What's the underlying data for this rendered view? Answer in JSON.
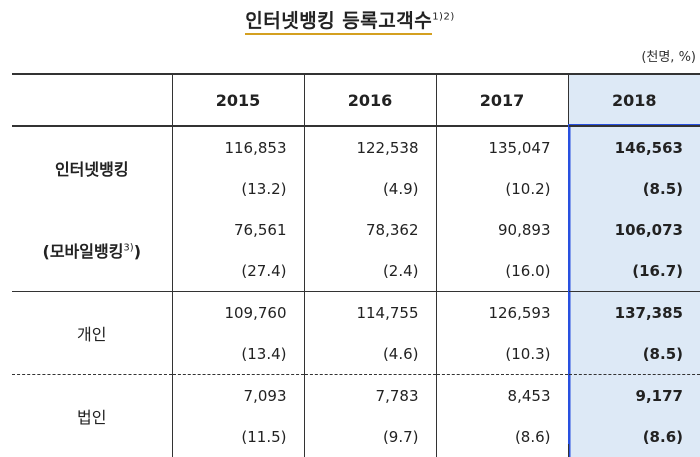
{
  "title": "인터넷뱅킹  등록고객수",
  "title_sup": "1)2)",
  "unit": "(천명, %)",
  "columns": [
    "2015",
    "2016",
    "2017",
    "2018"
  ],
  "groups": [
    {
      "label": "인터넷뱅킹",
      "label_bold": true,
      "rows": [
        [
          "116,853",
          "122,538",
          "135,047",
          "146,563"
        ],
        [
          "(13.2)",
          "(4.9)",
          "(10.2)",
          "(8.5)"
        ]
      ]
    },
    {
      "label": "(모바일뱅킹",
      "label_sup": "3)",
      "label_tail": ")",
      "label_bold": true,
      "rows": [
        [
          "76,561",
          "78,362",
          "90,893",
          "106,073"
        ],
        [
          "(27.4)",
          "(2.4)",
          "(16.0)",
          "(16.7)"
        ]
      ]
    },
    {
      "label": "개인",
      "label_bold": false,
      "rows": [
        [
          "109,760",
          "114,755",
          "126,593",
          "137,385"
        ],
        [
          "(13.4)",
          "(4.6)",
          "(10.3)",
          "(8.5)"
        ]
      ]
    },
    {
      "label": "법인",
      "label_bold": false,
      "rows": [
        [
          "7,093",
          "7,783",
          "8,453",
          "9,177"
        ],
        [
          "(11.5)",
          "(9.7)",
          "(8.6)",
          "(8.6)"
        ]
      ]
    }
  ],
  "colors": {
    "highlight_bg": "#dde9f6",
    "highlight_border": "#2850e0",
    "title_underline": "#d4a020"
  }
}
